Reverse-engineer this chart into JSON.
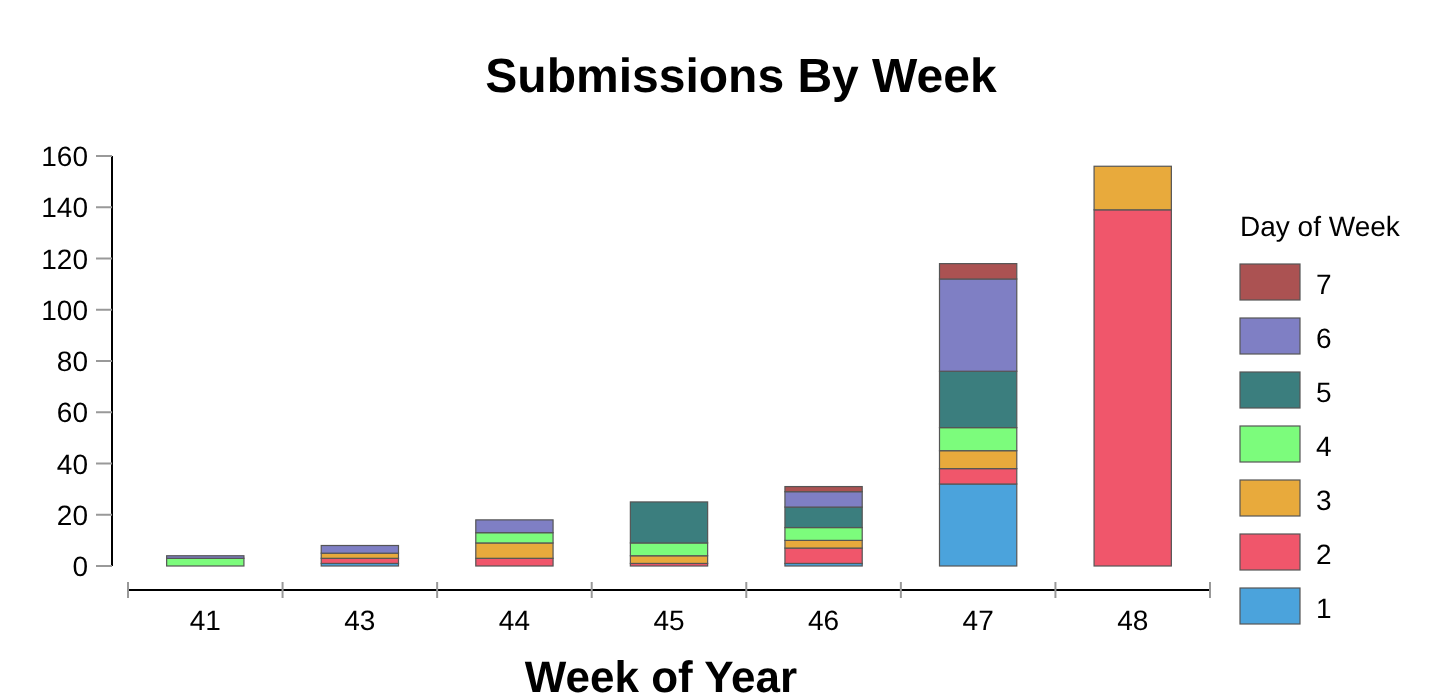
{
  "chart_data": {
    "type": "bar",
    "stacked": true,
    "title": "Submissions By Week",
    "xlabel": "Week of Year",
    "legend_title": "Day of Week",
    "legend": "right",
    "grid": false,
    "categories": [
      "41",
      "43",
      "44",
      "45",
      "46",
      "47",
      "48"
    ],
    "series": [
      {
        "name": "1",
        "color": "#4ba3dc",
        "values": [
          0,
          1,
          0,
          0,
          1,
          32,
          0
        ]
      },
      {
        "name": "2",
        "color": "#f0566b",
        "values": [
          0,
          2,
          3,
          1,
          6,
          6,
          139
        ]
      },
      {
        "name": "3",
        "color": "#e8aa3c",
        "values": [
          0,
          2,
          6,
          3,
          3,
          7,
          17
        ]
      },
      {
        "name": "4",
        "color": "#7cfc7c",
        "values": [
          3,
          0,
          4,
          5,
          5,
          9,
          0
        ]
      },
      {
        "name": "5",
        "color": "#3b7e7e",
        "values": [
          0,
          0,
          0,
          16,
          8,
          22,
          0
        ]
      },
      {
        "name": "6",
        "color": "#7f7fc4",
        "values": [
          1,
          3,
          5,
          0,
          6,
          36,
          0
        ]
      },
      {
        "name": "7",
        "color": "#ab5252",
        "values": [
          0,
          0,
          0,
          0,
          2,
          6,
          0
        ]
      }
    ],
    "ylim": [
      0,
      160
    ],
    "yticks": [
      0,
      20,
      40,
      60,
      80,
      100,
      120,
      140,
      160
    ]
  }
}
